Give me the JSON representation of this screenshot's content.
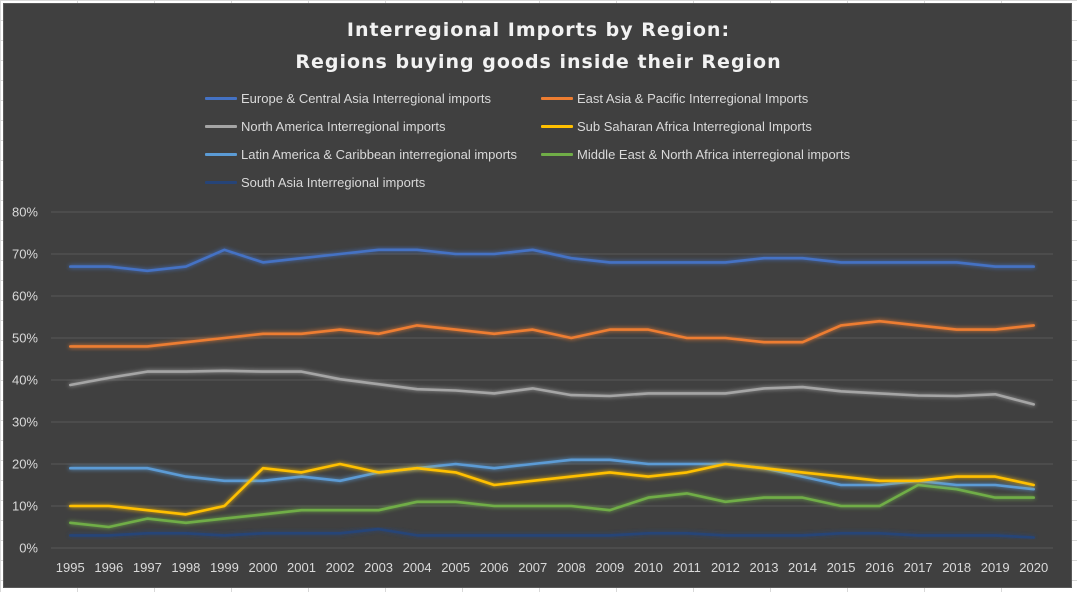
{
  "chart_data": {
    "type": "line",
    "title_lines": [
      "Interregional Imports by Region:",
      "Regions buying goods inside their Region"
    ],
    "xlabel": "",
    "ylabel": "",
    "ylim": [
      0,
      80
    ],
    "y_ticks": [
      "0%",
      "10%",
      "20%",
      "30%",
      "40%",
      "50%",
      "60%",
      "70%",
      "80%"
    ],
    "x": [
      "1995",
      "1996",
      "1997",
      "1998",
      "1999",
      "2000",
      "2001",
      "2002",
      "2003",
      "2004",
      "2005",
      "2006",
      "2007",
      "2008",
      "2009",
      "2010",
      "2011",
      "2012",
      "2013",
      "2014",
      "2015",
      "2016",
      "2017",
      "2018",
      "2019",
      "2020"
    ],
    "grid": true,
    "legend_position": "top",
    "series": [
      {
        "name": "Europe & Central Asia Interregional imports",
        "color": "#4472c4",
        "values": [
          67,
          67,
          66,
          67,
          71,
          68,
          69,
          70,
          71,
          71,
          70,
          70,
          71,
          69,
          68,
          68,
          68,
          68,
          69,
          69,
          68,
          68,
          68,
          68,
          67,
          67
        ]
      },
      {
        "name": "East Asia & Pacific Interregional Imports",
        "color": "#ed7d31",
        "values": [
          48,
          48,
          48,
          49,
          50,
          51,
          51,
          52,
          51,
          53,
          52,
          51,
          52,
          50,
          52,
          52,
          50,
          50,
          49,
          49,
          53,
          54,
          53,
          52,
          52,
          53
        ]
      },
      {
        "name": "North America Interregional imports",
        "color": "#a5a5a5",
        "values": [
          38.8,
          40.5,
          42,
          42,
          42.2,
          42,
          42,
          40.2,
          39,
          37.8,
          37.5,
          36.8,
          38,
          36.4,
          36.2,
          36.8,
          36.8,
          36.8,
          38,
          38.3,
          37.3,
          36.8,
          36.3,
          36.2,
          36.6,
          34.2
        ]
      },
      {
        "name": "Sub Saharan Africa Interregional Imports",
        "color": "#ffc000",
        "values": [
          10,
          10,
          9,
          8,
          10,
          19,
          18,
          20,
          18,
          19,
          18,
          15,
          16,
          17,
          18,
          17,
          18,
          20,
          19,
          18,
          17,
          16,
          16,
          17,
          17,
          15
        ]
      },
      {
        "name": "Latin America & Caribbean interregional imports",
        "color": "#5b9bd5",
        "values": [
          19,
          19,
          19,
          17,
          16,
          16,
          17,
          16,
          18,
          19,
          20,
          19,
          20,
          21,
          21,
          20,
          20,
          20,
          19,
          17,
          15,
          15,
          16,
          15,
          15,
          14
        ]
      },
      {
        "name": "Middle East & North Africa interregional imports",
        "color": "#70ad47",
        "values": [
          6,
          5,
          7,
          6,
          7,
          8,
          9,
          9,
          9,
          11,
          11,
          10,
          10,
          10,
          9,
          12,
          13,
          11,
          12,
          12,
          10,
          10,
          15,
          14,
          12,
          12
        ]
      },
      {
        "name": "South Asia Interregional imports",
        "color": "#264478",
        "values": [
          3,
          3,
          3.5,
          3.5,
          3,
          3.5,
          3.5,
          3.5,
          4.5,
          3,
          3,
          3,
          3,
          3,
          3,
          3.5,
          3.5,
          3,
          3,
          3,
          3.5,
          3.5,
          3,
          3,
          3,
          2.5
        ]
      }
    ]
  }
}
